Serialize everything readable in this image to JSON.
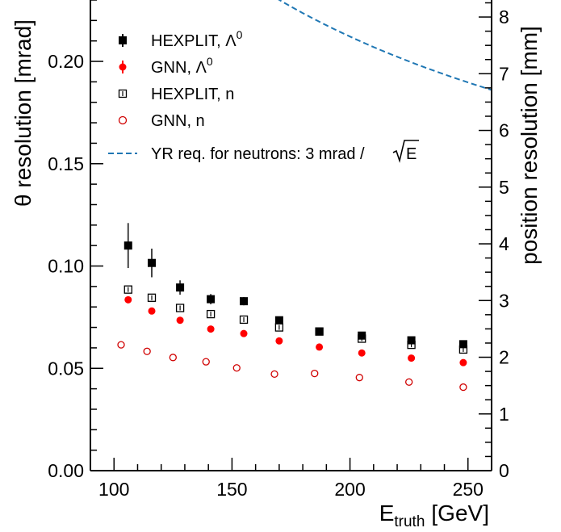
{
  "chart_data": {
    "type": "scatter",
    "xlabel": "E",
    "xlabel_sub": "truth",
    "xlabel_unit": "[GeV]",
    "ylabel": "θ resolution [mrad]",
    "y2label": "position resolution [mm]",
    "xlim": [
      90,
      260
    ],
    "ylim": [
      0,
      0.23
    ],
    "y2lim": [
      0,
      8.3
    ],
    "xticks": [
      "100",
      "150",
      "200",
      "250"
    ],
    "xtick_values": [
      100,
      150,
      200,
      250
    ],
    "yticks": [
      "0.00",
      "0.05",
      "0.10",
      "0.15",
      "0.20"
    ],
    "ytick_values": [
      0.0,
      0.05,
      0.1,
      0.15,
      0.2
    ],
    "y2ticks": [
      "0",
      "1",
      "2",
      "3",
      "4",
      "5",
      "6",
      "7",
      "8"
    ],
    "y2tick_values": [
      0,
      1,
      2,
      3,
      4,
      5,
      6,
      7,
      8
    ],
    "legend_position": "top-left",
    "series": [
      {
        "name": "HEXPLIT, Λ",
        "name_sup": "0",
        "marker": "filled-square",
        "color": "#000000",
        "x": [
          106,
          116,
          128,
          141,
          155,
          170,
          187,
          205,
          226,
          248
        ],
        "y": [
          0.11,
          0.1015,
          0.0895,
          0.0838,
          0.0828,
          0.0735,
          0.068,
          0.066,
          0.0637,
          0.0618
        ],
        "err": [
          0.011,
          0.007,
          0.0035,
          0.0025,
          0.002,
          0.0018,
          0.0015,
          0.0015,
          0.0014,
          0.0013
        ]
      },
      {
        "name": "GNN, Λ",
        "name_sup": "0",
        "marker": "filled-circle",
        "color": "#ff0000",
        "x": [
          106,
          116,
          128,
          141,
          155,
          170,
          187,
          205,
          226,
          248
        ],
        "y": [
          0.0835,
          0.078,
          0.0735,
          0.0692,
          0.067,
          0.0634,
          0.0604,
          0.0575,
          0.055,
          0.0528
        ],
        "err": [
          0.0008,
          0.0008,
          0.0008,
          0.0008,
          0.0008,
          0.0008,
          0.0008,
          0.0008,
          0.0008,
          0.0008
        ]
      },
      {
        "name": "HEXPLIT, n",
        "name_sup": "",
        "marker": "open-square",
        "color": "#000000",
        "x": [
          106,
          116,
          128,
          141,
          155,
          170,
          187,
          205,
          226,
          248
        ],
        "y": [
          0.0885,
          0.0845,
          0.0795,
          0.0765,
          0.0738,
          0.07,
          0.068,
          0.0645,
          0.0615,
          0.0592
        ],
        "err": [
          0.0008,
          0.0008,
          0.0008,
          0.0008,
          0.0008,
          0.0008,
          0.0008,
          0.0008,
          0.0008,
          0.0008
        ]
      },
      {
        "name": "GNN, n",
        "name_sup": "",
        "marker": "open-circle",
        "color": "#d00000",
        "x": [
          103,
          114,
          125,
          139,
          152,
          168,
          185,
          204,
          225,
          248
        ],
        "y": [
          0.0615,
          0.0583,
          0.0553,
          0.0532,
          0.0502,
          0.0472,
          0.0475,
          0.0455,
          0.0433,
          0.0408
        ],
        "err": []
      }
    ],
    "reference_line": {
      "name": "YR req. for neutrons: 3 mrad /",
      "sqrt_label": "E",
      "formula": "3 mrad / sqrt(E)",
      "color": "#1f77b4",
      "style": "dashed"
    }
  }
}
